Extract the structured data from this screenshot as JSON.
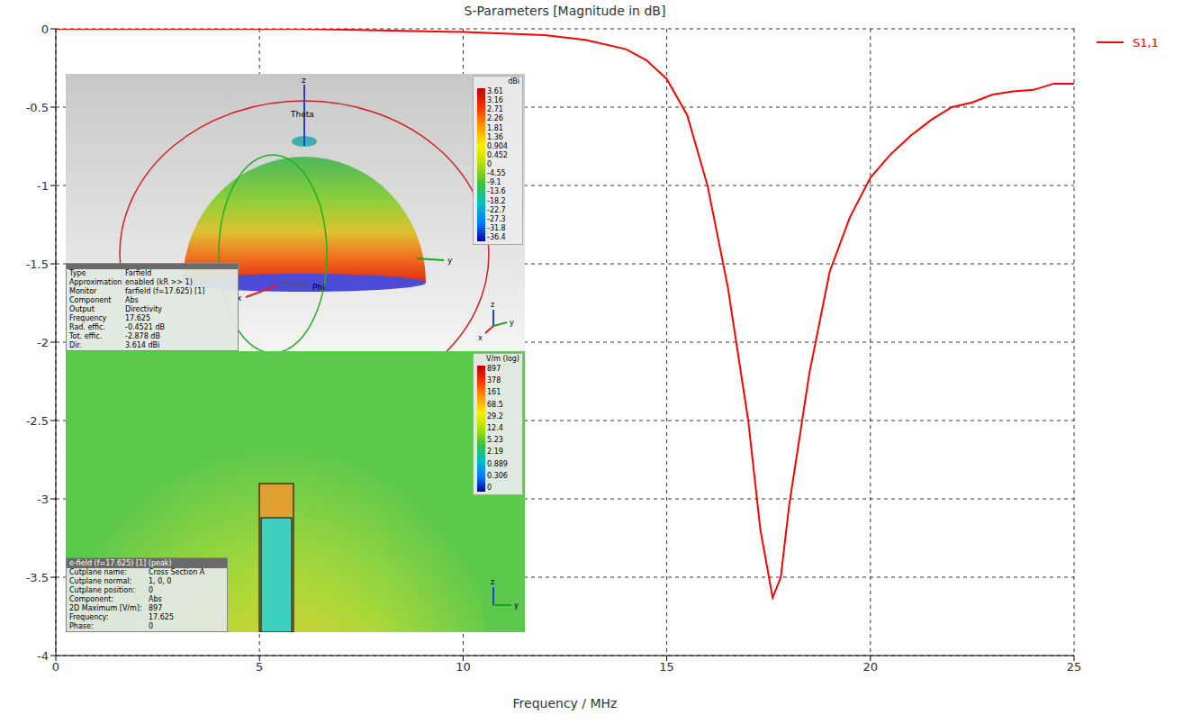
{
  "chart_data": {
    "type": "line",
    "title": "S-Parameters [Magnitude in dB]",
    "x_label": "Frequency / MHz",
    "x": [
      0,
      2,
      4,
      6,
      8,
      10,
      11,
      12,
      13,
      14,
      14.5,
      15,
      15.5,
      16,
      16.5,
      17,
      17.3,
      17.6,
      17.8,
      18,
      18.5,
      19,
      19.5,
      20,
      20.5,
      21,
      21.5,
      22,
      22.5,
      23,
      23.5,
      24,
      24.5,
      25
    ],
    "series": [
      {
        "name": "S1,1",
        "color": "#ff0000",
        "values": [
          0,
          0,
          0,
          0,
          -0.01,
          -0.02,
          -0.03,
          -0.04,
          -0.07,
          -0.13,
          -0.2,
          -0.32,
          -0.55,
          -1.0,
          -1.65,
          -2.5,
          -3.2,
          -3.63,
          -3.5,
          -3.05,
          -2.2,
          -1.55,
          -1.2,
          -0.95,
          -0.8,
          -0.68,
          -0.58,
          -0.5,
          -0.47,
          -0.42,
          -0.4,
          -0.39,
          -0.35,
          -0.35
        ]
      }
    ],
    "xlim": [
      0,
      25
    ],
    "xticks": [
      0,
      5,
      10,
      15,
      20,
      25
    ],
    "ylim": [
      -4,
      0
    ],
    "yticks": [
      -4,
      -3.5,
      -3,
      -2.5,
      -2,
      -1.5,
      -1,
      -0.5,
      0
    ],
    "grid": true,
    "legend": "right"
  },
  "insets": [
    {
      "type": "farfield",
      "colorbar": {
        "title": "dBi",
        "ticks": [
          3.61,
          3.16,
          2.71,
          2.26,
          1.81,
          1.36,
          0.904,
          0.452,
          0,
          -4.55,
          -9.1,
          -13.6,
          -18.2,
          -22.7,
          -27.3,
          -31.8,
          -36.4
        ]
      },
      "axis_labels": {
        "x": "x",
        "y": "y",
        "z": "z",
        "theta": "Theta",
        "phi": "Phi"
      },
      "info": [
        [
          "Type",
          "Farfield"
        ],
        [
          "Approximation",
          "enabled (kR >> 1)"
        ],
        [
          "Monitor",
          "farfield (f=17.625) [1]"
        ],
        [
          "Component",
          "Abs"
        ],
        [
          "Output",
          "Directivity"
        ],
        [
          "Frequency",
          "17.625"
        ],
        [
          "Rad. effic.",
          "-0.4521 dB"
        ],
        [
          "Tot. effic.",
          "-2.878 dB"
        ],
        [
          "Dir.",
          "3.614 dBi"
        ]
      ]
    },
    {
      "type": "e-field",
      "title": "e-field (f=17.625) [1] (peak)",
      "colorbar": {
        "title": "V/m (log)",
        "ticks": [
          897,
          378,
          161,
          68.5,
          29.2,
          12.4,
          5.23,
          2.19,
          0.889,
          0.306,
          0
        ]
      },
      "axis_labels": {
        "z": "z",
        "y": "y"
      },
      "info": [
        [
          "Cutplane name:",
          "Cross Section A"
        ],
        [
          "Cutplane normal:",
          "1, 0, 0"
        ],
        [
          "Cutplane position:",
          "0"
        ],
        [
          "Component:",
          "Abs"
        ],
        [
          "2D Maximum [V/m]:",
          "897"
        ],
        [
          "Frequency:",
          "17.625"
        ],
        [
          "Phase:",
          "0"
        ]
      ]
    }
  ]
}
